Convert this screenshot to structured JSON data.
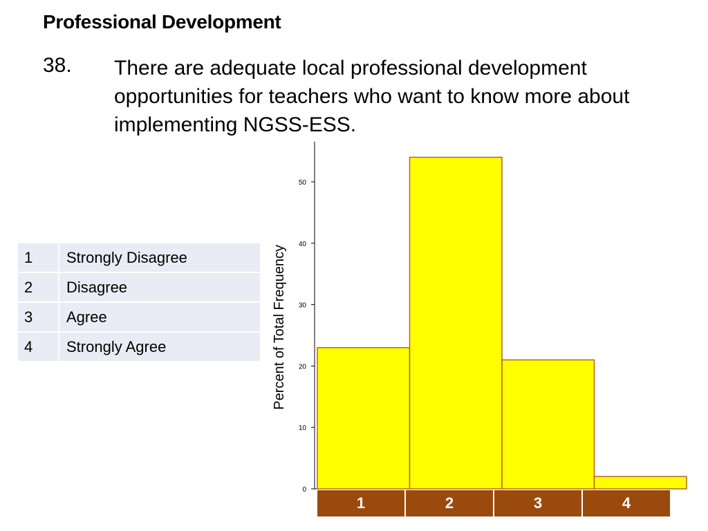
{
  "slide": {
    "heading": "Professional Development",
    "question_number": "38.",
    "question_text": "There are adequate local professional development opportunities for teachers who want to know more about implementing NGSS-ESS."
  },
  "legend": [
    {
      "code": "1",
      "label": "Strongly Disagree"
    },
    {
      "code": "2",
      "label": "Disagree"
    },
    {
      "code": "3",
      "label": "Agree"
    },
    {
      "code": "4",
      "label": "Strongly Agree"
    }
  ],
  "chart_data": {
    "type": "bar",
    "categories": [
      "1",
      "2",
      "3",
      "4"
    ],
    "values": [
      23,
      54,
      21,
      2
    ],
    "ylabel": "Percent of Total Frequency",
    "xlabel": "",
    "yticks": [
      0,
      10,
      20,
      30,
      40,
      50
    ],
    "ylim": [
      0,
      56
    ],
    "grid": false,
    "bar_color": "#ffff00",
    "bar_edge_color": "#b5651d",
    "category_band_color": "#9b4a0e"
  }
}
